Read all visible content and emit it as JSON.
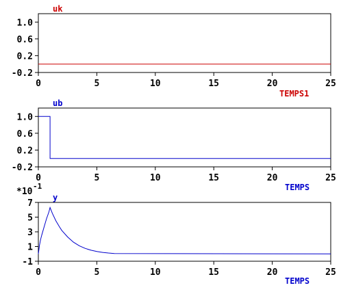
{
  "colors": {
    "red": "#cc0000",
    "blue": "#0000cc",
    "axis": "#000000"
  },
  "charts": [
    {
      "type": "line",
      "series_label": "uk",
      "xlabel": "TEMPS1",
      "color": "#cc0000",
      "xlim": [
        0,
        25
      ],
      "ylim": [
        -0.2,
        1.2
      ],
      "xticks": [
        0,
        5,
        10,
        15,
        20,
        25
      ],
      "yticks": [
        -0.2,
        0.2,
        0.6,
        1.0
      ],
      "ytick_labels": [
        "-0.2",
        "0.2",
        "0.6",
        "1.0"
      ],
      "x": [
        0,
        25
      ],
      "y": [
        0,
        0
      ]
    },
    {
      "type": "line",
      "series_label": "ub",
      "xlabel": "TEMPS",
      "color": "#0000cc",
      "xlim": [
        0,
        25
      ],
      "ylim": [
        -0.2,
        1.2
      ],
      "xticks": [
        0,
        5,
        10,
        15,
        20,
        25
      ],
      "yticks": [
        -0.2,
        0.2,
        0.6,
        1.0
      ],
      "ytick_labels": [
        "-0.2",
        "0.2",
        "0.6",
        "1.0"
      ],
      "x": [
        0,
        1,
        1,
        25
      ],
      "y": [
        1,
        1,
        0,
        0
      ]
    },
    {
      "type": "line",
      "series_label": "y",
      "xlabel": "TEMPS",
      "scale_label": "*10",
      "scale_exponent": "-1",
      "color": "#0000cc",
      "xlim": [
        0,
        25
      ],
      "ylim": [
        -1,
        7
      ],
      "xticks": [
        0,
        5,
        10,
        15,
        20,
        25
      ],
      "yticks": [
        -1,
        1,
        3,
        5,
        7
      ],
      "ytick_labels": [
        "-1",
        "1",
        "3",
        "5",
        "7"
      ],
      "x": [
        0,
        0.1,
        0.2,
        0.3,
        0.5,
        0.7,
        0.9,
        1.0,
        1.2,
        1.5,
        1.8,
        2.0,
        2.5,
        3.0,
        3.5,
        4.0,
        4.5,
        5.0,
        5.5,
        6.0,
        6.5,
        25
      ],
      "y": [
        0,
        1.2,
        2.0,
        2.6,
        3.7,
        4.8,
        5.7,
        6.3,
        5.5,
        4.5,
        3.7,
        3.2,
        2.3,
        1.6,
        1.1,
        0.75,
        0.5,
        0.33,
        0.2,
        0.12,
        0.05,
        0
      ]
    }
  ]
}
